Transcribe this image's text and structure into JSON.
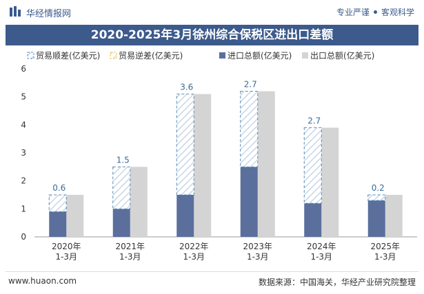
{
  "header": {
    "brand": "华经情报网",
    "tagline_left": "专业严谨",
    "tagline_right": "客观科学"
  },
  "title": "2020-2025年3月徐州综合保税区进出口差额",
  "footer": {
    "website": "www.huaon.com",
    "source": "数据来源：中国海关，华经产业研究院整理"
  },
  "colors": {
    "title_bg": "#3c5a8c",
    "import": "#5a6f9c",
    "export": "#d4d4d4",
    "surplus_hatch": "#5a8ab8",
    "deficit_hatch": "#e0c060"
  },
  "chart_data": {
    "type": "bar",
    "categories": [
      "2020年\n1-3月",
      "2021年\n1-3月",
      "2022年\n1-3月",
      "2023年\n1-3月",
      "2024年\n1-3月",
      "2025年\n1-3月"
    ],
    "series": [
      {
        "name": "贸易顺差(亿美元)",
        "values": [
          0.6,
          1.5,
          3.6,
          2.7,
          2.7,
          0.2
        ]
      },
      {
        "name": "贸易逆差(亿美元)",
        "values": [
          0,
          0,
          0,
          0,
          0,
          0
        ]
      },
      {
        "name": "进口总额(亿美元)",
        "values": [
          0.9,
          1.0,
          1.5,
          2.5,
          1.2,
          1.3
        ]
      },
      {
        "name": "出口总额(亿美元)",
        "values": [
          1.5,
          2.5,
          5.1,
          5.2,
          3.9,
          1.5
        ]
      }
    ],
    "data_labels": [
      "0.6",
      "1.5",
      "3.6",
      "2.7",
      "2.7",
      "0.2"
    ],
    "ylim": [
      0,
      6
    ],
    "yticks": [
      0,
      1,
      2,
      3,
      4,
      5,
      6
    ],
    "legend_position": "top",
    "grid": false
  }
}
